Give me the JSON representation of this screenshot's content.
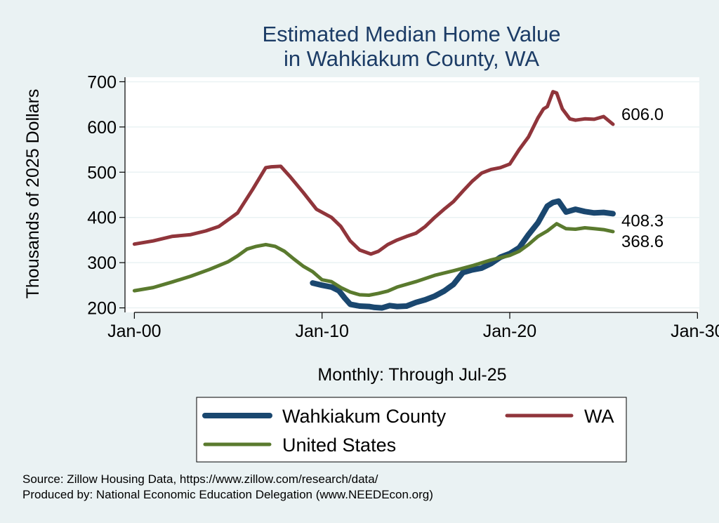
{
  "chart_data": {
    "type": "line",
    "title": [
      "Estimated Median Home Value",
      "in Wahkiakum County, WA"
    ],
    "ylabel": "Thousands of 2025 Dollars",
    "xlabel": "Monthly: Through Jul-25",
    "ylim": [
      190,
      710
    ],
    "xlim": [
      1999.5,
      2030.1
    ],
    "y_ticks": [
      200,
      300,
      400,
      500,
      600,
      700
    ],
    "x_ticks": [
      {
        "value": 2000,
        "label": "Jan-00"
      },
      {
        "value": 2010,
        "label": "Jan-10"
      },
      {
        "value": 2020,
        "label": "Jan-20"
      },
      {
        "value": 2030,
        "label": "Jan-30"
      }
    ],
    "grid": true,
    "legend_position": "bottom",
    "series": [
      {
        "name": "Wahkiakum County",
        "color": "#1a476f",
        "end_label": "408.3",
        "points": [
          [
            2009.5,
            255
          ],
          [
            2010,
            250
          ],
          [
            2010.5,
            246
          ],
          [
            2010.9,
            238
          ],
          [
            2011.2,
            222
          ],
          [
            2011.5,
            208
          ],
          [
            2012,
            204
          ],
          [
            2012.5,
            203
          ],
          [
            2012.8,
            201
          ],
          [
            2013.2,
            200
          ],
          [
            2013.6,
            205
          ],
          [
            2014,
            203
          ],
          [
            2014.5,
            204
          ],
          [
            2015,
            212
          ],
          [
            2015.5,
            218
          ],
          [
            2016,
            226
          ],
          [
            2016.5,
            237
          ],
          [
            2017,
            252
          ],
          [
            2017.5,
            278
          ],
          [
            2018,
            284
          ],
          [
            2018.5,
            288
          ],
          [
            2019,
            298
          ],
          [
            2019.5,
            312
          ],
          [
            2020,
            320
          ],
          [
            2020.5,
            333
          ],
          [
            2021,
            362
          ],
          [
            2021.5,
            388
          ],
          [
            2022,
            425
          ],
          [
            2022.3,
            433
          ],
          [
            2022.6,
            436
          ],
          [
            2023,
            412
          ],
          [
            2023.5,
            418
          ],
          [
            2024,
            413
          ],
          [
            2024.5,
            410
          ],
          [
            2025,
            411
          ],
          [
            2025.5,
            408.3
          ]
        ]
      },
      {
        "name": "WA",
        "color": "#90353b",
        "end_label": "606.0",
        "points": [
          [
            2000,
            341
          ],
          [
            2001,
            348
          ],
          [
            2002,
            358
          ],
          [
            2003,
            362
          ],
          [
            2003.8,
            370
          ],
          [
            2004.5,
            380
          ],
          [
            2005.5,
            410
          ],
          [
            2006.3,
            462
          ],
          [
            2007,
            510
          ],
          [
            2007.3,
            512
          ],
          [
            2007.8,
            513
          ],
          [
            2008.3,
            490
          ],
          [
            2009,
            455
          ],
          [
            2009.7,
            418
          ],
          [
            2010.5,
            400
          ],
          [
            2011,
            380
          ],
          [
            2011.5,
            348
          ],
          [
            2012,
            328
          ],
          [
            2012.6,
            319
          ],
          [
            2013,
            325
          ],
          [
            2013.5,
            340
          ],
          [
            2014,
            350
          ],
          [
            2014.5,
            358
          ],
          [
            2015,
            365
          ],
          [
            2015.5,
            380
          ],
          [
            2016,
            400
          ],
          [
            2016.5,
            418
          ],
          [
            2017,
            435
          ],
          [
            2017.5,
            458
          ],
          [
            2018,
            480
          ],
          [
            2018.5,
            498
          ],
          [
            2019,
            506
          ],
          [
            2019.5,
            510
          ],
          [
            2020,
            518
          ],
          [
            2020.5,
            550
          ],
          [
            2021,
            578
          ],
          [
            2021.5,
            620
          ],
          [
            2021.8,
            640
          ],
          [
            2022,
            645
          ],
          [
            2022.3,
            678
          ],
          [
            2022.5,
            675
          ],
          [
            2022.8,
            640
          ],
          [
            2023.2,
            618
          ],
          [
            2023.5,
            615
          ],
          [
            2024,
            618
          ],
          [
            2024.5,
            617
          ],
          [
            2025,
            623
          ],
          [
            2025.5,
            606
          ]
        ]
      },
      {
        "name": "United States",
        "color": "#5a7a2e",
        "end_label": "368.6",
        "points": [
          [
            2000,
            238
          ],
          [
            2001,
            245
          ],
          [
            2002,
            257
          ],
          [
            2003,
            270
          ],
          [
            2004,
            285
          ],
          [
            2005,
            302
          ],
          [
            2005.5,
            315
          ],
          [
            2006,
            330
          ],
          [
            2006.5,
            336
          ],
          [
            2007,
            340
          ],
          [
            2007.5,
            336
          ],
          [
            2008,
            325
          ],
          [
            2008.5,
            308
          ],
          [
            2009,
            292
          ],
          [
            2009.5,
            280
          ],
          [
            2010,
            262
          ],
          [
            2010.5,
            258
          ],
          [
            2011,
            245
          ],
          [
            2011.5,
            235
          ],
          [
            2012,
            229
          ],
          [
            2012.5,
            228
          ],
          [
            2013,
            232
          ],
          [
            2013.5,
            237
          ],
          [
            2014,
            246
          ],
          [
            2015,
            258
          ],
          [
            2016,
            272
          ],
          [
            2017,
            282
          ],
          [
            2018,
            293
          ],
          [
            2019,
            306
          ],
          [
            2020,
            316
          ],
          [
            2020.5,
            325
          ],
          [
            2021,
            340
          ],
          [
            2021.5,
            358
          ],
          [
            2022,
            370
          ],
          [
            2022.5,
            386
          ],
          [
            2023,
            375
          ],
          [
            2023.5,
            374
          ],
          [
            2024,
            377
          ],
          [
            2024.5,
            375
          ],
          [
            2025,
            373
          ],
          [
            2025.5,
            368.6
          ]
        ]
      }
    ],
    "legend": [
      {
        "label": "Wahkiakum County",
        "color": "#1a476f"
      },
      {
        "label": "WA",
        "color": "#90353b"
      },
      {
        "label": "United States",
        "color": "#5a7a2e"
      }
    ]
  },
  "footer": {
    "source": "Source: Zillow Housing Data, https://www.zillow.com/research/data/",
    "producer": "Produced by: National Economic Education Delegation (www.NEEDEcon.org)"
  }
}
